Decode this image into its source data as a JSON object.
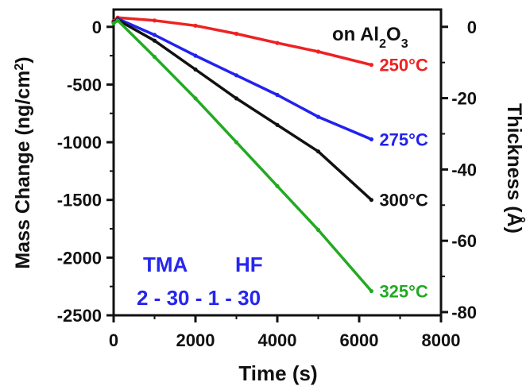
{
  "chart_data": {
    "type": "line",
    "xlabel": "Time (s)",
    "ylabel_left": {
      "text": "Mass Change (ng/cm",
      "sup": "2",
      "end": ")"
    },
    "ylabel_right": "Thickness (Å)",
    "xlim": [
      0,
      8000
    ],
    "ylim_left": [
      -2500,
      150
    ],
    "ylim_right": [
      -80.9,
      4.85
    ],
    "xticks": [
      0,
      2000,
      4000,
      6000,
      8000
    ],
    "xtick_labels": [
      "0",
      "2000",
      "4000",
      "6000",
      "8000"
    ],
    "yticks_left": [
      0,
      -500,
      -1000,
      -1500,
      -2000,
      -2500
    ],
    "ytick_labels_left": [
      "0",
      "-500",
      "-1000",
      "-1500",
      "-2000",
      "-2500"
    ],
    "yticks_right": [
      0,
      -20,
      -40,
      -60,
      -80
    ],
    "ytick_labels_right": [
      "0",
      "-20",
      "-40",
      "-60",
      "-80"
    ],
    "grid": false,
    "annotation_substrate": {
      "prefix": "on Al",
      "sub1": "2",
      "mid": "O",
      "sub2": "3"
    },
    "annotation_recipe": {
      "line1_a": "TMA",
      "line1_b": "HF",
      "line2": "2 - 30 - 1 - 30"
    },
    "series": [
      {
        "name": "250°C",
        "color": "#ee2222",
        "points": [
          [
            0,
            50
          ],
          [
            100,
            80
          ],
          [
            1000,
            55
          ],
          [
            2000,
            10
          ],
          [
            3000,
            -60
          ],
          [
            4000,
            -140
          ],
          [
            5000,
            -215
          ],
          [
            6300,
            -330
          ]
        ]
      },
      {
        "name": "275°C",
        "color": "#2222ee",
        "points": [
          [
            0,
            40
          ],
          [
            100,
            70
          ],
          [
            1000,
            -70
          ],
          [
            2000,
            -250
          ],
          [
            3000,
            -420
          ],
          [
            4000,
            -590
          ],
          [
            5000,
            -780
          ],
          [
            6300,
            -975
          ]
        ]
      },
      {
        "name": "300°C",
        "color": "#111111",
        "points": [
          [
            0,
            40
          ],
          [
            100,
            60
          ],
          [
            1000,
            -120
          ],
          [
            2000,
            -370
          ],
          [
            3000,
            -620
          ],
          [
            4000,
            -850
          ],
          [
            5000,
            -1080
          ],
          [
            6300,
            -1500
          ]
        ]
      },
      {
        "name": "325°C",
        "color": "#22aa22",
        "points": [
          [
            0,
            30
          ],
          [
            100,
            55
          ],
          [
            1000,
            -260
          ],
          [
            2000,
            -620
          ],
          [
            3000,
            -1000
          ],
          [
            4000,
            -1380
          ],
          [
            5000,
            -1760
          ],
          [
            6300,
            -2290
          ]
        ]
      }
    ]
  }
}
